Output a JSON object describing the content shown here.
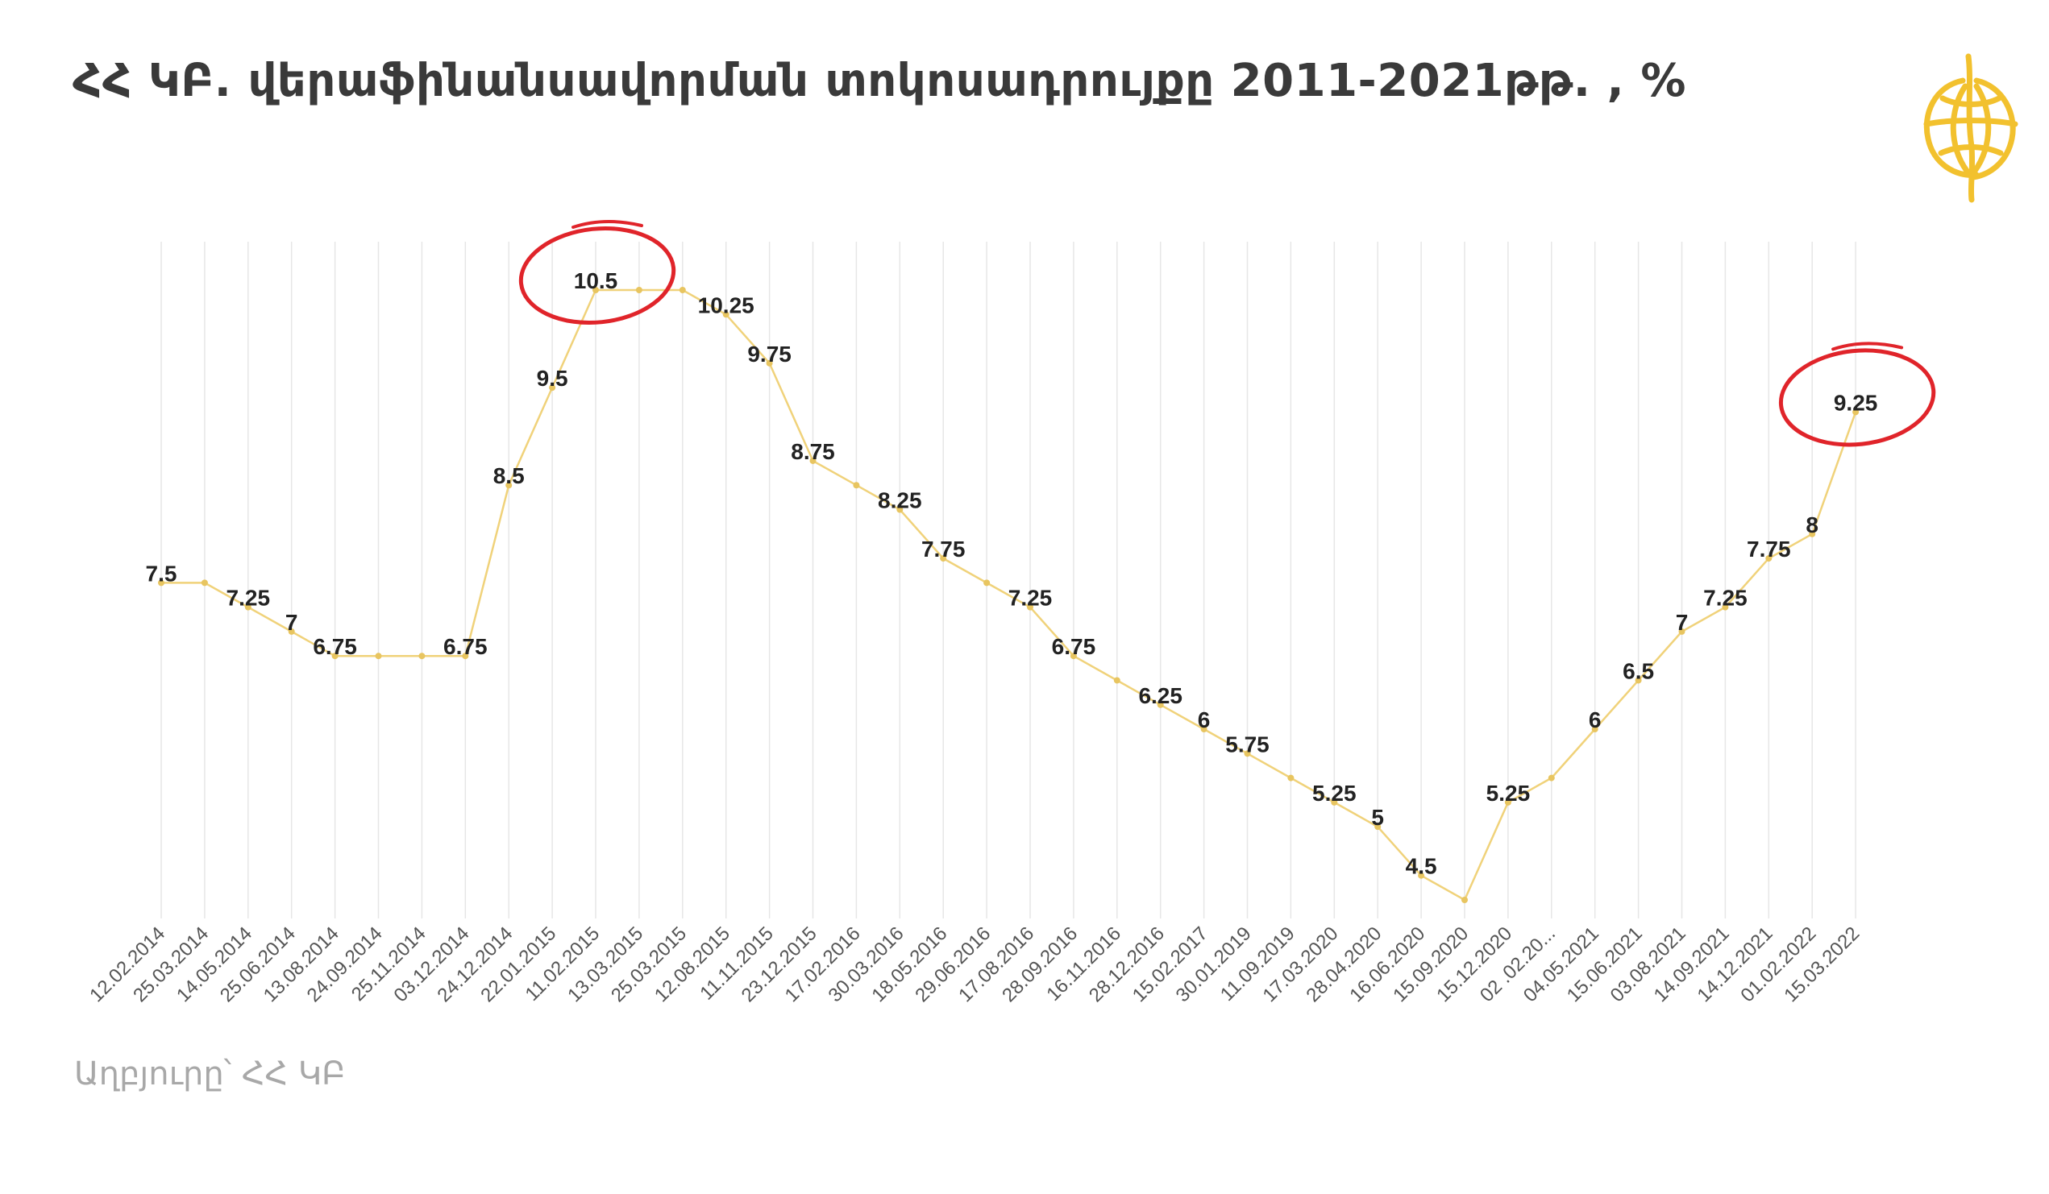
{
  "title": "ՀՀ ԿԲ. վերաֆինանսավորման տոկոսադրույքը  2011-2021թթ. , %",
  "source": "Աղբյուրը՝ ՀՀ ԿԲ",
  "colors": {
    "line": "#f0d27a",
    "marker": "#e8c560",
    "grid": "#e6e6e6",
    "highlight": "#e0242a",
    "logo": "#f2c12e"
  },
  "icons": {
    "logo": "globe-logo-icon"
  },
  "chart_data": {
    "type": "line",
    "title": "ՀՀ ԿԲ. վերաֆինանսավորման տոկոսադրույքը  2011-2021թթ. , %",
    "xlabel": "",
    "ylabel": "",
    "grid": "vertical",
    "ylim": [
      4.5,
      10.5
    ],
    "categories": [
      "12.02.2014",
      "25.03.2014",
      "14.05.2014",
      "25.06.2014",
      "13.08.2014",
      "24.09.2014",
      "25.11.2014",
      "03.12.2014",
      "24.12.2014",
      "22.01.2015",
      "11.02.2015",
      "13.03.2015",
      "25.03.2015",
      "12.08.2015",
      "11.11.2015",
      "23.12.2015",
      "17.02.2016",
      "30.03.2016",
      "18.05.2016",
      "29.06.2016",
      "17.08.2016",
      "28.09.2016",
      "16.11.2016",
      "28.12.2016",
      "15.02.2017",
      "30.01.2019",
      "11.09.2019",
      "17.03.2020",
      "28.04.2020",
      "16.06.2020",
      "15.09.2020",
      "15.12.2020",
      "02 .02.20...",
      "04.05.2021",
      "15.06.2021",
      "03.08.2021",
      "14.09.2021",
      "14.12.2021",
      "01.02.2022",
      "15.03.2022"
    ],
    "series": [
      {
        "values": [
          7.5,
          7.5,
          7.25,
          7,
          6.75,
          6.75,
          6.75,
          6.75,
          8.5,
          9.5,
          10.5,
          10.5,
          10.5,
          10.25,
          9.75,
          8.75,
          8.5,
          8.25,
          7.75,
          7.5,
          7.25,
          6.75,
          6.5,
          6.25,
          6,
          5.75,
          5.5,
          5.25,
          5,
          4.5,
          4.25,
          5.25,
          5.5,
          6,
          6.5,
          7,
          7.25,
          7.75,
          8,
          9.25
        ]
      }
    ],
    "data_labels": [
      "7.5",
      "",
      "7.25",
      "7",
      "6.75",
      "",
      "",
      "6.75",
      "8.5",
      "9.5",
      "10.5",
      "",
      "",
      "10.25",
      "9.75",
      "8.75",
      "",
      "8.25",
      "7.75",
      "",
      "7.25",
      "6.75",
      "",
      "6.25",
      "6",
      "5.75",
      "",
      "5.25",
      "5",
      "4.5",
      "",
      "5.25",
      "",
      "6",
      "6.5",
      "7",
      "7.25",
      "7.75",
      "8",
      "9.25"
    ],
    "highlighted_points": [
      "11.02.2015",
      "15.03.2022"
    ]
  }
}
